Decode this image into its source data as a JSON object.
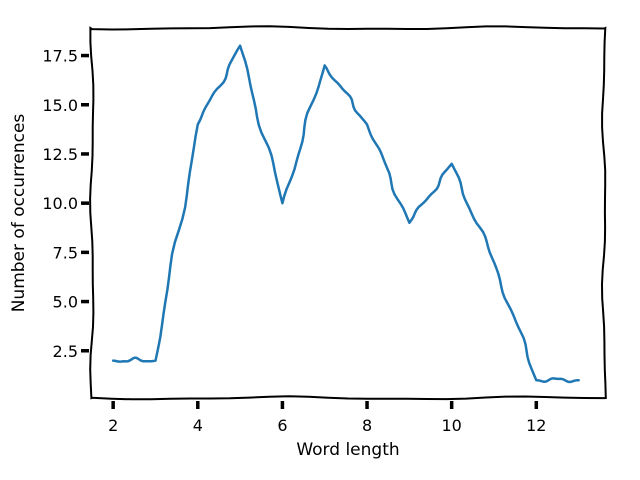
{
  "chart_data": {
    "type": "line",
    "style": "xkcd",
    "title": "",
    "xlabel": "Word length",
    "ylabel": "Number of occurrences",
    "xlim": [
      1.5,
      13.6
    ],
    "ylim": [
      0.1,
      18.9
    ],
    "grid": false,
    "xticks": [
      2,
      4,
      6,
      8,
      10,
      12
    ],
    "yticks": [
      2.5,
      5.0,
      7.5,
      10.0,
      12.5,
      15.0,
      17.5
    ],
    "ytick_labels": [
      "2.5",
      "5.0",
      "7.5",
      "10.0",
      "12.5",
      "15.0",
      "17.5"
    ],
    "series": [
      {
        "color": "#1f77b4",
        "x": [
          2,
          3,
          4,
          5,
          6,
          7,
          8,
          9,
          10,
          11,
          12,
          13
        ],
        "y": [
          2,
          2,
          14,
          18,
          10,
          17,
          14,
          9,
          12,
          7,
          1,
          1
        ]
      }
    ]
  }
}
